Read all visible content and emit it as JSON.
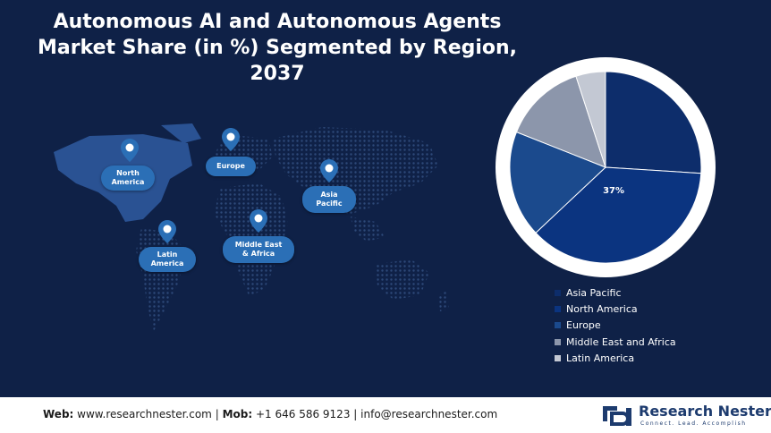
{
  "title": "Autonomous AI and Autonomous Agents Market Share (in %) Segmented by Region, 2037",
  "map": {
    "regions": [
      {
        "id": "north-america",
        "label": "North\nAmerica"
      },
      {
        "id": "europe",
        "label": "Europe"
      },
      {
        "id": "asia-pacific",
        "label": "Asia\nPacific"
      },
      {
        "id": "latin-america",
        "label": "Latin\nAmerica"
      },
      {
        "id": "middle-east-africa",
        "label": "Middle East\n& Africa"
      }
    ]
  },
  "chart_data": {
    "type": "pie",
    "title": "Autonomous AI and Autonomous Agents Market Share (in %) Segmented by Region, 2037",
    "categories": [
      "Asia Pacific",
      "North America",
      "Europe",
      "Middle East and Africa",
      "Latin America"
    ],
    "values": [
      26,
      37,
      18,
      14,
      5
    ],
    "colors": [
      "#0d2d6b",
      "#0b3480",
      "#1b4a8d",
      "#8c96ab",
      "#c3c8d3"
    ],
    "data_labels": [
      "",
      "37%",
      "",
      "",
      ""
    ],
    "legend_position": "bottom-right",
    "start_angle": "12 o'clock, clockwise"
  },
  "footer": {
    "web_label": "Web:",
    "web_value": "www.researchnester.com",
    "mob_label": "Mob:",
    "mob_value": "+1 646 586 9123",
    "email": "info@researchnester.com",
    "separator": "|"
  },
  "logo": {
    "name": "Research Nester",
    "tagline": "Connect. Lead. Accomplish",
    "accent": "#1d3b6e"
  },
  "icons": {
    "map_pin": "map-pin-icon",
    "logo_mark": "research-nester-logo-icon"
  }
}
